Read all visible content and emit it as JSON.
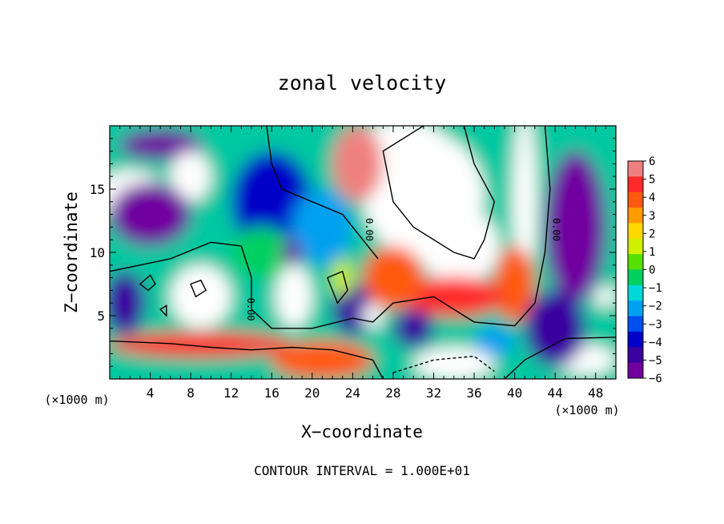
{
  "chart_data": {
    "type": "heatmap",
    "title": "zonal velocity",
    "xlabel": "X−coordinate",
    "ylabel": "Z−coordinate",
    "x_unit_left": "(×1000 m)",
    "x_unit_right": "(×1000 m)",
    "footer": "CONTOUR INTERVAL = 1.000E+01",
    "xlim": [
      0,
      50
    ],
    "ylim": [
      0,
      20
    ],
    "x_ticks": [
      4,
      8,
      12,
      16,
      20,
      24,
      28,
      32,
      36,
      40,
      44,
      48
    ],
    "x_tick_labels": [
      "4",
      "8",
      "12",
      "16",
      "20",
      "24",
      "28",
      "32",
      "36",
      "40",
      "44",
      "48"
    ],
    "y_ticks": [
      5,
      10,
      15
    ],
    "y_tick_labels": [
      "5",
      "10",
      "15"
    ],
    "colorbar": {
      "range": [
        -6,
        6
      ],
      "ticks": [
        6,
        5,
        4,
        3,
        2,
        1,
        0,
        -1,
        -2,
        -3,
        -4,
        -5,
        -6
      ],
      "tick_labels": [
        "6",
        "5",
        "4",
        "3",
        "2",
        "1",
        "0",
        "−1",
        "−2",
        "−3",
        "−4",
        "−5",
        "−6"
      ],
      "colors": [
        "#f08080",
        "#ff2a2a",
        "#ff5a10",
        "#ff9a00",
        "#ffd800",
        "#d0f000",
        "#55e000",
        "#00d060",
        "#00d8d8",
        "#00a0f0",
        "#0050f0",
        "#0000c8",
        "#3a00a0",
        "#7000a0"
      ]
    },
    "contour_labels": [
      {
        "text": "0.00",
        "x": 25.3,
        "z": 11.8
      },
      {
        "text": "0.00",
        "x": 13.6,
        "z": 5.5
      },
      {
        "text": "0.00",
        "x": 43.8,
        "z": 11.8
      }
    ],
    "blobs": [
      {
        "x": 31,
        "z": 14.5,
        "rx": 6,
        "rz": 5,
        "v": 9
      },
      {
        "x": 34.5,
        "z": 10.5,
        "rx": 4,
        "rz": 3,
        "v": 8
      },
      {
        "x": 29,
        "z": 17.5,
        "rx": 5,
        "rz": 3,
        "v": 7
      },
      {
        "x": 24.5,
        "z": 17,
        "rx": 2.5,
        "rz": 3,
        "v": 6
      },
      {
        "x": 41,
        "z": 14,
        "rx": 1.2,
        "rz": 7,
        "v": 7
      },
      {
        "x": 40,
        "z": 7.5,
        "rx": 2,
        "rz": 3,
        "v": 4
      },
      {
        "x": 34,
        "z": 6.5,
        "rx": 5,
        "rz": 1.6,
        "v": 5
      },
      {
        "x": 28,
        "z": 8,
        "rx": 3,
        "rz": 2.5,
        "v": 4
      },
      {
        "x": 9,
        "z": 6.5,
        "rx": 3,
        "rz": 2.5,
        "v": 9
      },
      {
        "x": 18.2,
        "z": 6.5,
        "rx": 1.8,
        "rz": 2.5,
        "v": 9
      },
      {
        "x": 9,
        "z": 2.7,
        "rx": 9,
        "rz": 1,
        "v": 5
      },
      {
        "x": 21,
        "z": 1.5,
        "rx": 5,
        "rz": 1.5,
        "v": 4
      },
      {
        "x": 34,
        "z": 1.2,
        "rx": 4,
        "rz": 1.3,
        "v": 10
      },
      {
        "x": 47,
        "z": 1.5,
        "rx": 3,
        "rz": 1.2,
        "v": 8
      },
      {
        "x": 5,
        "z": 18.5,
        "rx": 4,
        "rz": 1.2,
        "v": -10
      },
      {
        "x": 2,
        "z": 14.5,
        "rx": 3.5,
        "rz": 2,
        "v": 8
      },
      {
        "x": 8,
        "z": 16,
        "rx": 2,
        "rz": 2,
        "v": 9
      },
      {
        "x": 4,
        "z": 13,
        "rx": 4,
        "rz": 2.5,
        "v": -6
      },
      {
        "x": 16,
        "z": 14,
        "rx": 4,
        "rz": 4,
        "v": -4
      },
      {
        "x": 21,
        "z": 12,
        "rx": 3,
        "rz": 3,
        "v": -2
      },
      {
        "x": 46,
        "z": 12,
        "rx": 3,
        "rz": 6,
        "v": -6
      },
      {
        "x": 49,
        "z": 6.5,
        "rx": 1.2,
        "rz": 0.8,
        "v": 9
      },
      {
        "x": 44,
        "z": 4,
        "rx": 3,
        "rz": 3,
        "v": -5
      },
      {
        "x": 24,
        "z": 5.5,
        "rx": 2,
        "rz": 2,
        "v": -5
      },
      {
        "x": 26,
        "z": 5,
        "rx": 1,
        "rz": 1,
        "v": 8
      },
      {
        "x": 30,
        "z": 4,
        "rx": 2,
        "rz": 1.5,
        "v": -5
      },
      {
        "x": 1.5,
        "z": 6,
        "rx": 2,
        "rz": 2.5,
        "v": -5
      },
      {
        "x": 15,
        "z": 10,
        "rx": 3,
        "rz": 2,
        "v": 0
      },
      {
        "x": 18,
        "z": 10,
        "rx": 1,
        "rz": 1,
        "v": -8
      },
      {
        "x": 23,
        "z": 8,
        "rx": 1,
        "rz": 1.5,
        "v": 1
      },
      {
        "x": 38,
        "z": 3,
        "rx": 2,
        "rz": 1.2,
        "v": -2
      }
    ]
  }
}
